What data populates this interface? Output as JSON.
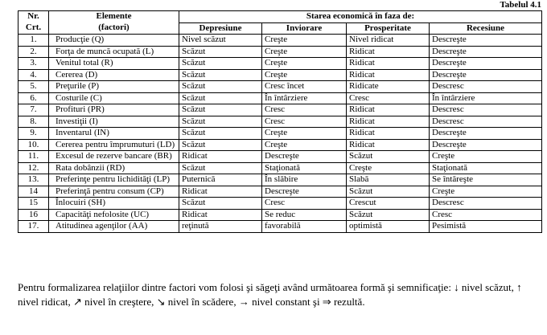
{
  "caption": "Tabelul 4.1",
  "table": {
    "header": {
      "nr": [
        "Nr.",
        "Crt."
      ],
      "elements": [
        "Elemente",
        "(factori)"
      ],
      "group": "Starea economică în faza de:",
      "phases": [
        "Depresiune",
        "Inviorare",
        "Prosperitate",
        "Recesiune"
      ]
    },
    "rows": [
      [
        "1.",
        "Producţie (Q)",
        "Nivel scăzut",
        "Creşte",
        "Nivel ridicat",
        "Descreşte"
      ],
      [
        "2.",
        "Forţa de muncă ocupată (L)",
        "Scăzut",
        "Creşte",
        "Ridicat",
        "Descreşte"
      ],
      [
        "3.",
        "Venitul total (R)",
        "Scăzut",
        "Creşte",
        "Ridicat",
        "Descreşte"
      ],
      [
        "4.",
        "Cererea (D)",
        "Scăzut",
        "Creşte",
        "Ridicat",
        "Descreşte"
      ],
      [
        "5.",
        "Preţurile (P)",
        "Scăzut",
        "Cresc încet",
        "Ridicate",
        "Descresc"
      ],
      [
        "6.",
        "Costurile (C)",
        "Scăzut",
        "În întârziere",
        "Cresc",
        "În întârziere"
      ],
      [
        "7.",
        "Profituri (PR)",
        "Scăzut",
        "Cresc",
        "Ridicat",
        "Descresc"
      ],
      [
        "8.",
        "Investiţii (I)",
        "Scăzut",
        "Cresc",
        "Ridicat",
        "Descresc"
      ],
      [
        "9.",
        "Inventarul (IN)",
        "Scăzut",
        "Creşte",
        "Ridicat",
        "Descreşte"
      ],
      [
        "10.",
        "Cererea pentru împrumuturi (LD)",
        "Scăzut",
        "Creşte",
        "Ridicat",
        "Descreşte"
      ],
      [
        "11.",
        "Excesul de rezerve bancare (BR)",
        "Ridicat",
        "Descreşte",
        "Scăzut",
        "Creşte"
      ],
      [
        "12.",
        "Rata dobânzii (RD)",
        "Scăzut",
        "Staţionată",
        "Creşte",
        "Staţionată"
      ],
      [
        "13.",
        "Preferinţe pentru lichidităţi (LP)",
        "Puternică",
        "În slăbire",
        "Slabă",
        "Se întăreşte"
      ],
      [
        "14",
        "Preferinţă pentru consum (CP)",
        "Ridicat",
        "Descreşte",
        "Scăzut",
        "Creşte"
      ],
      [
        "15",
        "Înlocuiri (SH)",
        "Scăzut",
        "Cresc",
        "Crescut",
        "Descresc"
      ],
      [
        "16",
        "Capacităţi nefolosite (UC)",
        "Ridicat",
        "Se reduc",
        "Scăzut",
        "Cresc"
      ],
      [
        "17.",
        "Atitudinea agenţilor (AA)",
        "reţinută",
        "favorabilă",
        "optimistă",
        "Pesimistă"
      ]
    ]
  },
  "paragraph": "Pentru formalizarea relaţiilor dintre factori vom folosi şi săgeţi având următoarea formă şi semnificaţie: ↓ nivel scăzut, ↑ nivel ridicat, ↗ nivel în creştere, ↘ nivel în scădere, → nivel constant şi ⇒ rezultă."
}
